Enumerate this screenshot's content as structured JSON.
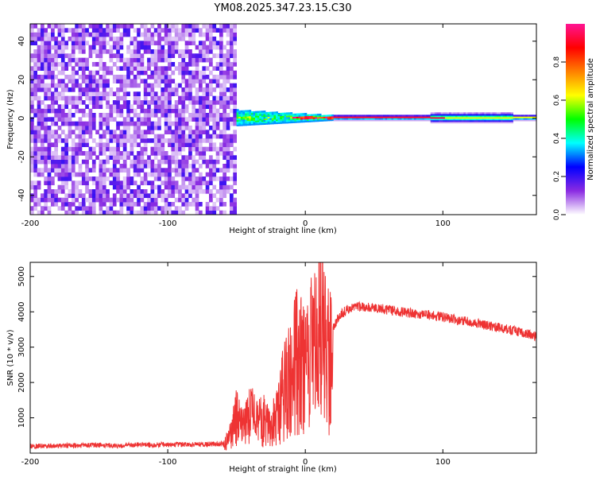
{
  "title": "YM08.2025.347.23.15.C30",
  "chart_data": [
    {
      "type": "heatmap",
      "name": "spectrogram",
      "xlabel": "Height of straight line (km)",
      "ylabel": "Frequency (Hz)",
      "xlim": [
        -200,
        168
      ],
      "ylim": [
        -50,
        49
      ],
      "xticks": [
        -200,
        -100,
        0,
        100
      ],
      "yticks": [
        -40,
        -20,
        0,
        20,
        40
      ],
      "noise_region_x": [
        -200,
        -50
      ],
      "signal_band_y": [
        -3,
        3
      ],
      "colorbar": {
        "label": "Normalized spectral amplitude",
        "range": [
          0.0,
          1.0
        ],
        "ticks": [
          "0.0",
          "0.2",
          "0.4",
          "0.6",
          "0.8"
        ],
        "tick_values": [
          0.0,
          0.2,
          0.4,
          0.6,
          0.8
        ],
        "colors": [
          "#ffffff",
          "#8a2be2",
          "#0000ff",
          "#00ffff",
          "#00ff00",
          "#ffff00",
          "#ff8000",
          "#ff0000",
          "#ff1493"
        ]
      }
    },
    {
      "type": "line",
      "name": "snr",
      "xlabel": "Height of straight line (km)",
      "ylabel": "SNR (10 * v/v)",
      "xlim": [
        -200,
        168
      ],
      "ylim": [
        0,
        5400
      ],
      "xticks": [
        -200,
        -100,
        0,
        100
      ],
      "yticks": [
        1000,
        2000,
        3000,
        4000,
        5000
      ],
      "color": "#ee3333",
      "x": [
        -200,
        -180,
        -160,
        -140,
        -120,
        -100,
        -80,
        -60,
        -55,
        -50,
        -45,
        -40,
        -35,
        -30,
        -25,
        -20,
        -15,
        -10,
        -5,
        0,
        5,
        10,
        12,
        15,
        20,
        25,
        30,
        35,
        40,
        50,
        60,
        80,
        100,
        120,
        140,
        160,
        168
      ],
      "y": [
        200,
        210,
        220,
        220,
        230,
        240,
        250,
        260,
        500,
        1200,
        900,
        1300,
        1000,
        1100,
        900,
        1200,
        2200,
        2600,
        3200,
        2600,
        3500,
        3000,
        5200,
        3000,
        3500,
        3900,
        4050,
        4100,
        4150,
        4120,
        4050,
        3950,
        3850,
        3700,
        3550,
        3400,
        3300
      ],
      "spike": {
        "x": 10,
        "y": 5380
      }
    }
  ]
}
